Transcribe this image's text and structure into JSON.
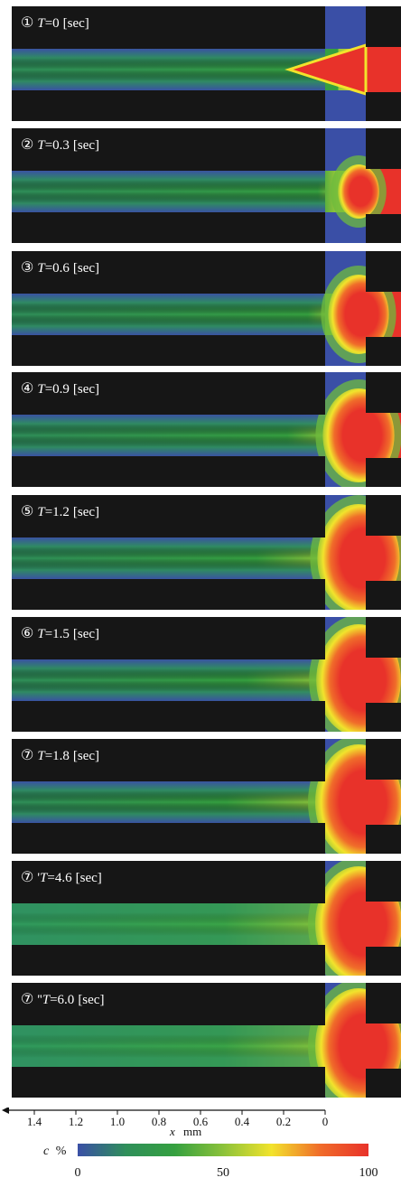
{
  "panels": [
    {
      "number": "①",
      "suffix": "",
      "var": "T",
      "value": "=0",
      "unit": "[sec]"
    },
    {
      "number": "②",
      "suffix": "",
      "var": "T",
      "value": "=0.3",
      "unit": "[sec]"
    },
    {
      "number": "③",
      "suffix": "",
      "var": "T",
      "value": "=0.6",
      "unit": "[sec]"
    },
    {
      "number": "④",
      "suffix": "",
      "var": "T",
      "value": "=0.9",
      "unit": "[sec]"
    },
    {
      "number": "⑤",
      "suffix": "",
      "var": "T",
      "value": "=1.2",
      "unit": "[sec]"
    },
    {
      "number": "⑥",
      "suffix": "",
      "var": "T",
      "value": "=1.5",
      "unit": "[sec]"
    },
    {
      "number": "⑦",
      "suffix": "",
      "var": "T",
      "value": "=1.8",
      "unit": "[sec]"
    },
    {
      "number": "⑦",
      "suffix": "'",
      "var": "T",
      "value": "=4.6",
      "unit": "[sec]"
    },
    {
      "number": "⑦",
      "suffix": "''",
      "var": "T",
      "value": "=6.0",
      "unit": "[sec]"
    }
  ],
  "x_axis": {
    "ticks": [
      "1.4",
      "1.2",
      "1.0",
      "0.8",
      "0.6",
      "0.4",
      "0.2",
      "0"
    ],
    "label_var": "x",
    "label_unit": "mm"
  },
  "colorbar": {
    "label_var": "c",
    "label_unit": "%",
    "ticks": [
      "0",
      "50",
      "100"
    ],
    "colors": [
      "#3a4fa6",
      "#2f8f5a",
      "#35a040",
      "#8bc23a",
      "#f2e32c",
      "#f06c2a",
      "#e8322a"
    ]
  },
  "colors": {
    "background": "#161616",
    "low": "#3a4fa6",
    "mid": "#35a040",
    "high": "#e8322a"
  }
}
